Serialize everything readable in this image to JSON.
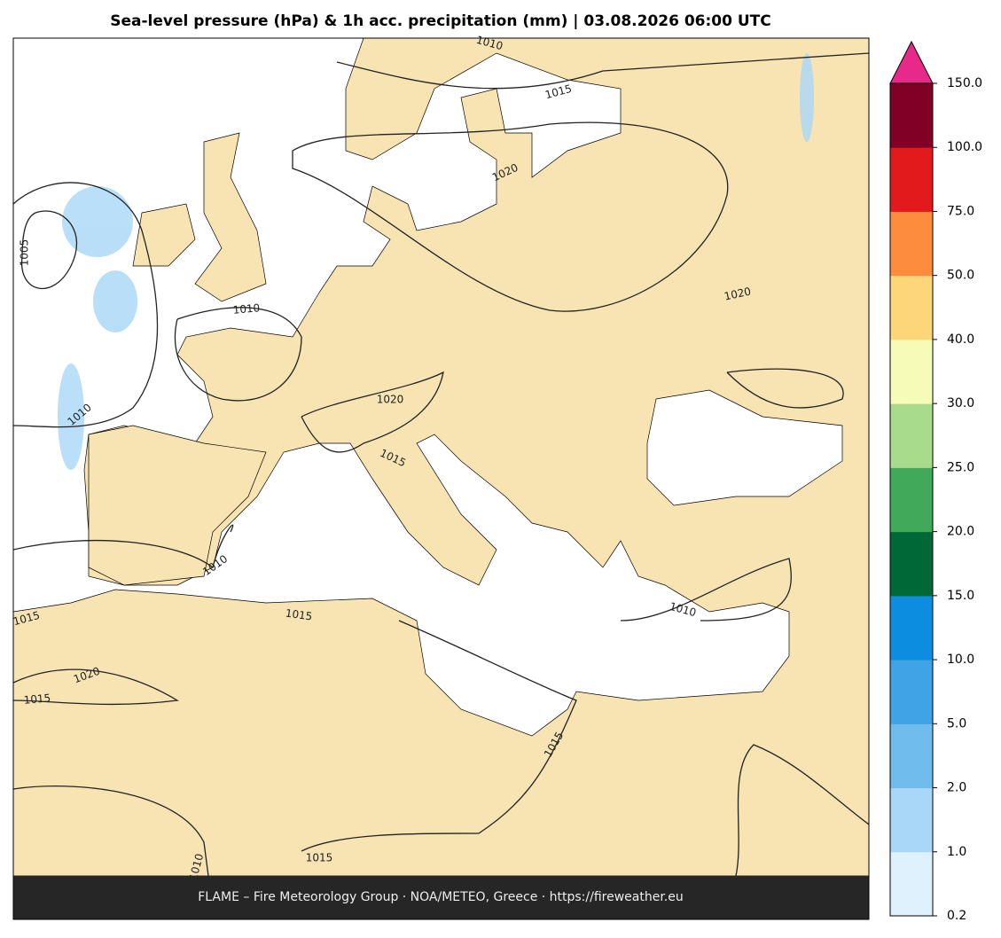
{
  "header": {
    "title": "Sea-level pressure (hPa) & 1h acc. precipitation (mm)  |  03.08.2026 06:00 UTC"
  },
  "map": {
    "contour_labels": [
      "1010",
      "1015",
      "1020",
      "1005",
      "1010",
      "1020",
      "1020",
      "1010",
      "1015",
      "1010",
      "1015",
      "1015",
      "1010",
      "1020",
      "1015",
      "1015",
      "1015",
      "1010"
    ]
  },
  "colorbar": {
    "ticks": [
      "0.2",
      "1.0",
      "2.0",
      "5.0",
      "10.0",
      "15.0",
      "20.0",
      "25.0",
      "30.0",
      "40.0",
      "50.0",
      "75.0",
      "100.0",
      "150.0"
    ],
    "colors": [
      "#def1fd",
      "#a8d7f7",
      "#70bcec",
      "#40a3e6",
      "#0d8de0",
      "#006837",
      "#40aa5a",
      "#a8dc8c",
      "#f7fbb8",
      "#fed67a",
      "#fd8d3c",
      "#e31a1c",
      "#800026"
    ],
    "extend_color": "#e7298a"
  },
  "footer": {
    "text": "FLAME – Fire Meteorology Group · NOA/METEO, Greece · https://fireweather.eu"
  }
}
